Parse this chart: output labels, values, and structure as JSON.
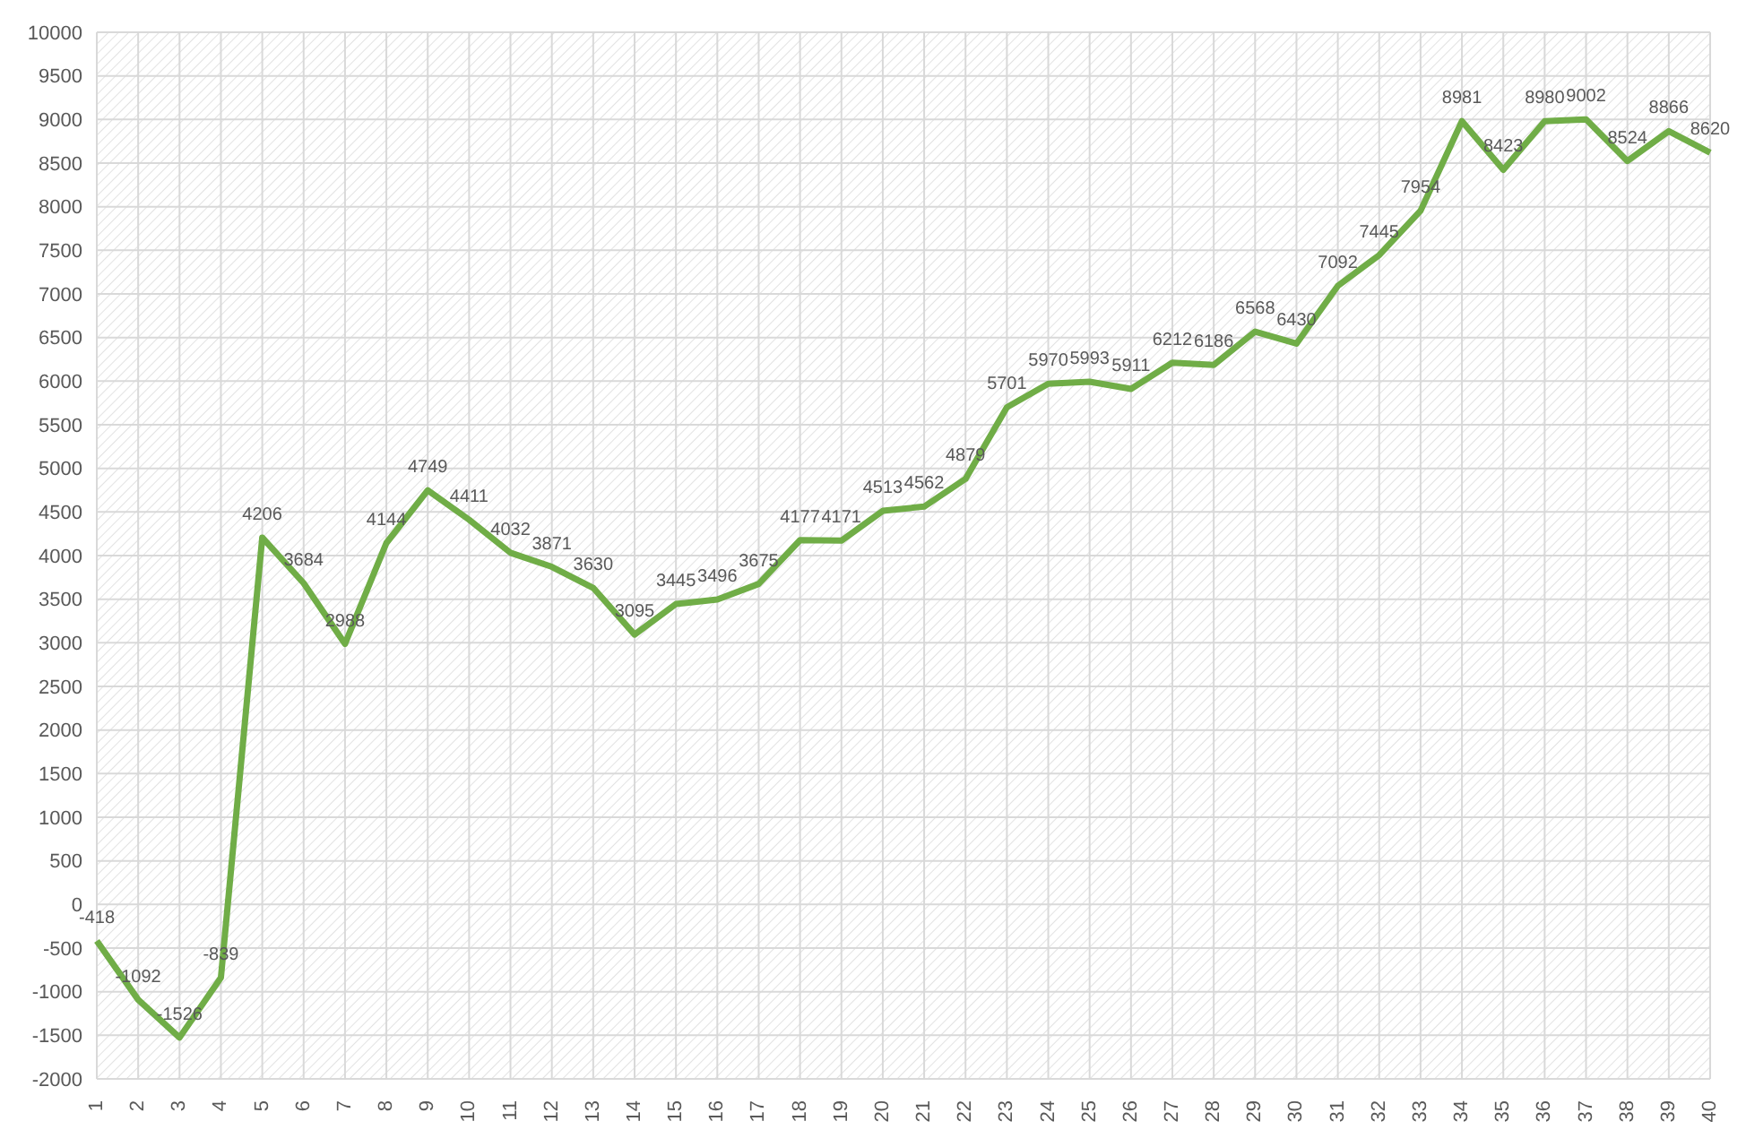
{
  "chart_data": {
    "type": "line",
    "categories": [
      "1",
      "2",
      "3",
      "4",
      "5",
      "6",
      "7",
      "8",
      "9",
      "10",
      "11",
      "12",
      "13",
      "14",
      "15",
      "16",
      "17",
      "18",
      "19",
      "20",
      "21",
      "22",
      "23",
      "24",
      "25",
      "26",
      "27",
      "28",
      "29",
      "30",
      "31",
      "32",
      "33",
      "34",
      "35",
      "36",
      "37",
      "38",
      "39",
      "40"
    ],
    "series": [
      {
        "color": "#70ad47",
        "values": [
          -418,
          -1092,
          -1526,
          -839,
          4206,
          3684,
          2988,
          4144,
          4749,
          4411,
          4032,
          3871,
          3630,
          3095,
          3445,
          3496,
          3675,
          4177,
          4171,
          4513,
          4562,
          4879,
          5701,
          5970,
          5993,
          5911,
          6212,
          6186,
          6568,
          6430,
          7092,
          7445,
          7954,
          8981,
          8423,
          8980,
          9002,
          8524,
          8866,
          8620
        ]
      }
    ],
    "ylim": [
      -2000,
      10000
    ],
    "yticks": [
      -2000,
      -1500,
      -1000,
      -500,
      0,
      500,
      1000,
      1500,
      2000,
      2500,
      3000,
      3500,
      4000,
      4500,
      5000,
      5500,
      6000,
      6500,
      7000,
      7500,
      8000,
      8500,
      9000,
      9500,
      10000
    ],
    "grid": true,
    "data_labels": true,
    "marker": "none",
    "line_style": "solid",
    "legend": false
  }
}
